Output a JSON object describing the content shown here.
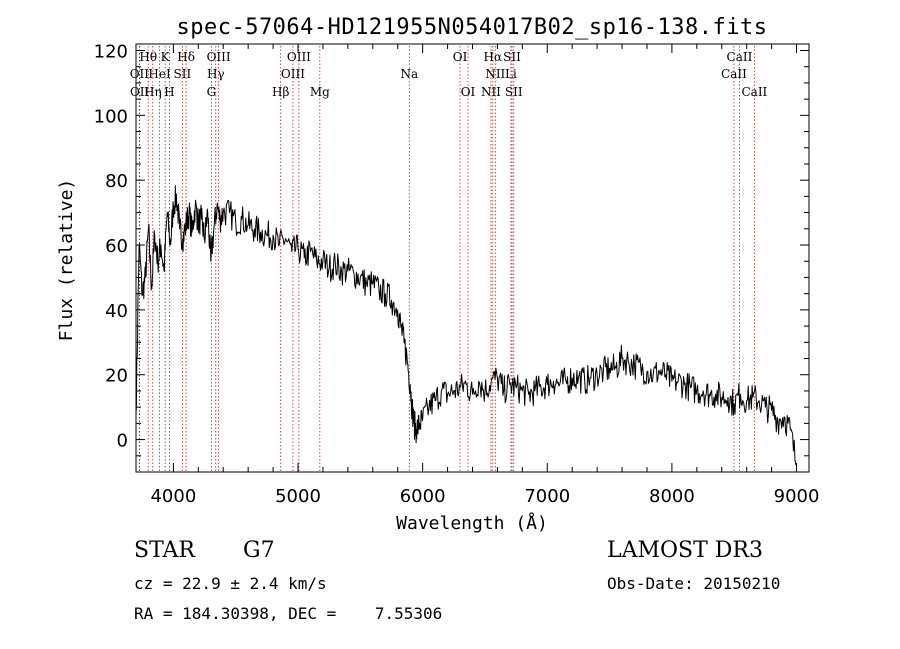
{
  "chart_data": {
    "type": "line",
    "title": "spec-57064-HD121955N054017B02_sp16-138.fits",
    "xlabel": "Wavelength (Å)",
    "ylabel": "Flux (relative)",
    "xlim": [
      3700,
      9100
    ],
    "ylim": [
      -10,
      122
    ],
    "x_ticks": [
      4000,
      5000,
      6000,
      7000,
      8000,
      9000
    ],
    "y_ticks": [
      0,
      20,
      40,
      60,
      80,
      100,
      120
    ],
    "grid": false,
    "line_color": "#000000",
    "marker_color": "#b22222",
    "series": [
      {
        "x": [
          3700,
          3725,
          3750,
          3775,
          3800,
          3825,
          3850,
          3875,
          3900,
          3925,
          3950,
          3975,
          4000,
          4025,
          4050,
          4075,
          4100,
          4125,
          4150,
          4175,
          4200,
          4225,
          4250,
          4275,
          4300,
          4325,
          4350,
          4375,
          4400,
          4450,
          4500,
          4550,
          4600,
          4650,
          4700,
          4750,
          4800,
          4850,
          4900,
          4950,
          5000,
          5050,
          5100,
          5150,
          5200,
          5250,
          5300,
          5350,
          5400,
          5450,
          5500,
          5550,
          5600,
          5650,
          5700,
          5750,
          5800,
          5825,
          5850,
          5875,
          5900,
          5915,
          5930,
          5950,
          5975,
          6000,
          6050,
          6100,
          6150,
          6200,
          6250,
          6300,
          6350,
          6400,
          6450,
          6500,
          6550,
          6600,
          6650,
          6700,
          6750,
          6800,
          6850,
          6900,
          6950,
          7000,
          7050,
          7100,
          7150,
          7200,
          7250,
          7300,
          7350,
          7400,
          7450,
          7500,
          7550,
          7600,
          7650,
          7700,
          7750,
          7800,
          7850,
          7900,
          7950,
          8000,
          8050,
          8100,
          8150,
          8200,
          8250,
          8300,
          8350,
          8400,
          8450,
          8500,
          8550,
          8600,
          8650,
          8700,
          8750,
          8800,
          8850,
          8900,
          8950,
          9000
        ],
        "y": [
          8,
          60,
          45,
          50,
          65,
          47,
          63,
          55,
          60,
          52,
          70,
          60,
          72,
          75,
          65,
          62,
          66,
          70,
          64,
          72,
          67,
          68,
          62,
          70,
          55,
          65,
          72,
          68,
          70,
          70,
          67,
          68,
          66,
          65,
          64,
          63,
          63,
          60,
          62,
          58,
          59,
          56,
          58,
          55,
          55,
          53,
          54,
          52,
          52,
          51,
          50,
          48,
          48,
          46,
          45,
          43,
          40,
          35,
          30,
          25,
          17,
          10,
          5,
          3,
          5,
          6,
          10,
          12,
          15,
          14,
          15,
          16,
          17,
          14,
          18,
          15,
          18,
          19,
          15,
          17,
          16,
          15,
          14,
          15,
          16,
          17,
          18,
          17,
          18,
          19,
          19,
          18,
          19,
          20,
          21,
          22,
          22,
          25,
          24,
          23,
          22,
          21,
          20,
          21,
          20,
          18,
          18,
          17,
          16,
          15,
          15,
          14,
          14,
          13,
          13,
          11,
          14,
          12,
          13,
          12,
          10,
          9,
          6,
          7,
          3,
          -8
        ]
      }
    ],
    "spectral_lines": [
      {
        "label": "Hθ",
        "wl": 3798,
        "row": 0
      },
      {
        "label": "K",
        "wl": 3934,
        "row": 0
      },
      {
        "label": "Hδ",
        "wl": 4102,
        "row": 0
      },
      {
        "label": "OIII",
        "wl": 4363,
        "row": 0
      },
      {
        "label": "OIII",
        "wl": 5007,
        "row": 0
      },
      {
        "label": "OI",
        "wl": 6300,
        "row": 0
      },
      {
        "label": "Hα",
        "wl": 6563,
        "row": 0
      },
      {
        "label": "SII",
        "wl": 6717,
        "row": 0
      },
      {
        "label": "CaII",
        "wl": 8542,
        "row": 0
      },
      {
        "label": "OII",
        "wl": 3727,
        "row": 1
      },
      {
        "label": "HeI",
        "wl": 3889,
        "row": 1
      },
      {
        "label": "SII",
        "wl": 4072,
        "row": 1
      },
      {
        "label": "Hγ",
        "wl": 4340,
        "row": 1
      },
      {
        "label": "OIII",
        "wl": 4959,
        "row": 1
      },
      {
        "label": "Na",
        "wl": 5893,
        "row": 1
      },
      {
        "label": "NII",
        "wl": 6583,
        "row": 1
      },
      {
        "label": "Li",
        "wl": 6708,
        "row": 1
      },
      {
        "label": "CaII",
        "wl": 8498,
        "row": 1
      },
      {
        "label": "OII",
        "wl": 3729,
        "row": 2
      },
      {
        "label": "Hη",
        "wl": 3835,
        "row": 2
      },
      {
        "label": "H",
        "wl": 3968,
        "row": 2
      },
      {
        "label": "G",
        "wl": 4305,
        "row": 2
      },
      {
        "label": "Hβ",
        "wl": 4861,
        "row": 2
      },
      {
        "label": "Mg",
        "wl": 5175,
        "row": 2
      },
      {
        "label": "OI",
        "wl": 6364,
        "row": 2
      },
      {
        "label": "NII",
        "wl": 6548,
        "row": 2
      },
      {
        "label": "SII",
        "wl": 6731,
        "row": 2
      },
      {
        "label": "CaII",
        "wl": 8662,
        "row": 2
      }
    ]
  },
  "info": {
    "class_label": "STAR",
    "subclass": "G7",
    "survey": "LAMOST DR3",
    "redshift": "cz = 22.9 ± 2.4 km/s",
    "obs_date": "Obs-Date: 20150210",
    "coords": "RA = 184.30398, DEC =    7.55306"
  }
}
